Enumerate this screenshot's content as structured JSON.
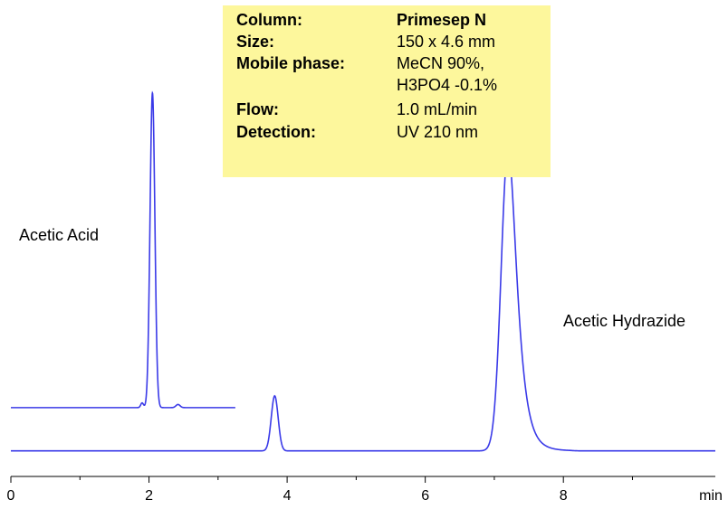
{
  "info_box": {
    "rows": [
      {
        "key": "Column:",
        "value": "Primesep N"
      },
      {
        "key": "Size:",
        "value": "150 x 4.6 mm"
      },
      {
        "key": "Mobile phase:",
        "value": "MeCN 90%,"
      },
      {
        "key": "",
        "value": "H3PO4 -0.1%"
      },
      {
        "key": "Flow:",
        "value": "1.0 mL/min"
      },
      {
        "key": "Detection:",
        "value": "UV 210 nm"
      }
    ]
  },
  "chart_data": {
    "type": "line",
    "title": "",
    "xlabel": "min",
    "ylabel": "",
    "xlim": [
      0,
      10.2
    ],
    "ylim": [
      0,
      100
    ],
    "grid": false,
    "x_ticks": [
      0,
      2,
      4,
      6,
      8
    ],
    "series_color": "#3a3ae8",
    "annotations": [
      {
        "text": "Acetic Acid",
        "series": 0
      },
      {
        "text": "Acetic Hydrazide",
        "series": 1
      }
    ],
    "series": [
      {
        "baseline": 17.5,
        "x_range": [
          0,
          3.25
        ],
        "peaks": [
          {
            "x": 2.05,
            "height": 80,
            "width": 0.035
          },
          {
            "x": 1.9,
            "height": 1.2,
            "width": 0.02
          },
          {
            "x": 2.42,
            "height": 0.8,
            "width": 0.03
          }
        ]
      },
      {
        "baseline": 6.5,
        "x_range": [
          0,
          10.2
        ],
        "peaks": [
          {
            "x": 3.82,
            "height": 14,
            "width": 0.05
          },
          {
            "x": 7.2,
            "height": 77,
            "width": 0.1,
            "tail": 0.5
          }
        ]
      }
    ]
  }
}
